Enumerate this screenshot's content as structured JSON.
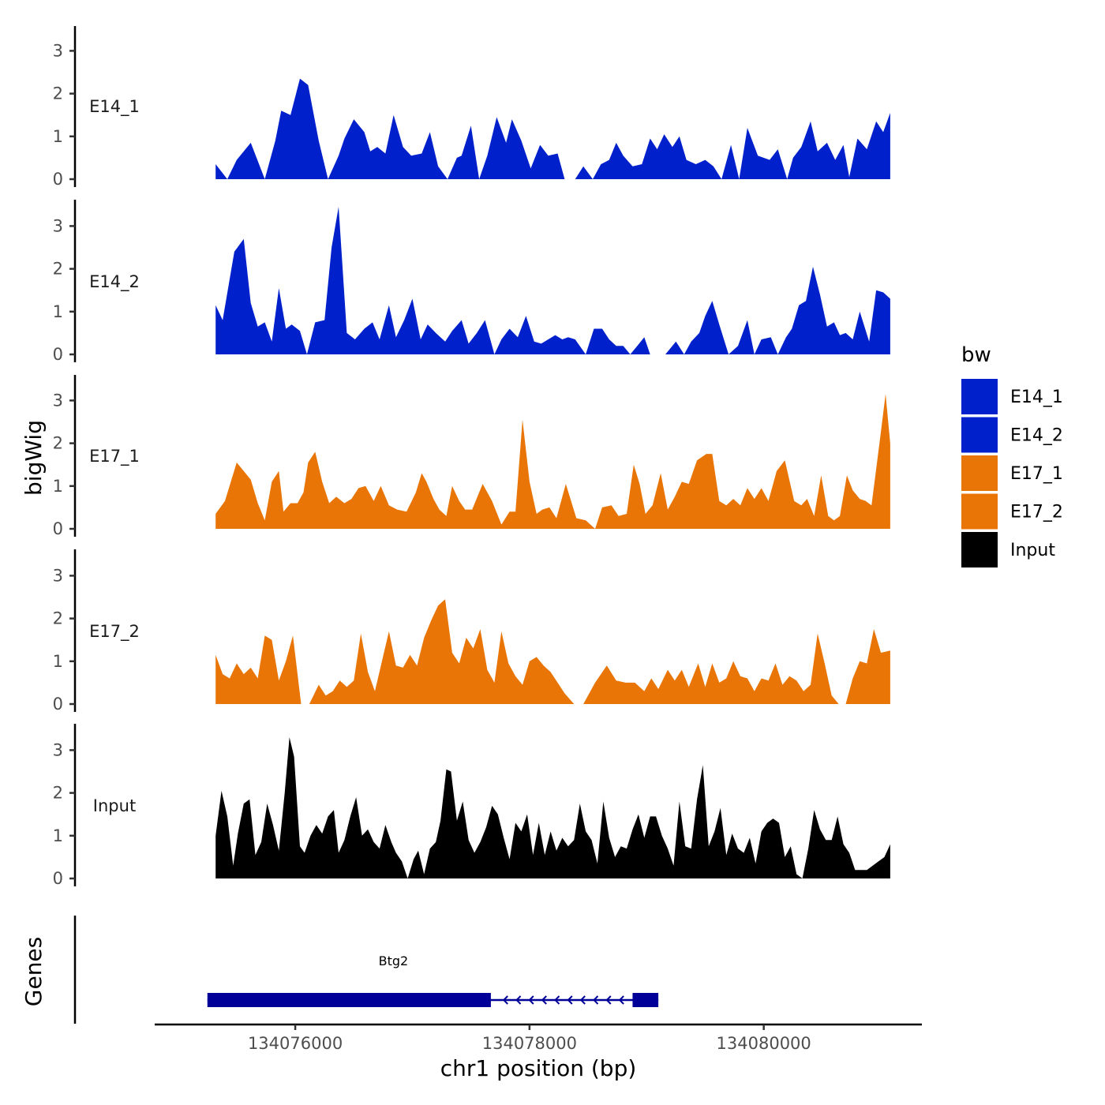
{
  "chart_data": {
    "type": "area",
    "title": "",
    "xlabel": "chr1 position (bp)",
    "ylabel": "bigWig",
    "genes_label": "Genes",
    "xlim": [
      134074800,
      134081350
    ],
    "ylim": [
      0,
      3.6
    ],
    "y_ticks": [
      0,
      1,
      2,
      3
    ],
    "x_ticks": [
      134076000,
      134078000,
      134080000
    ],
    "x_tick_labels": [
      "134076000",
      "134078000",
      "134080000"
    ],
    "legend": {
      "title": "bw",
      "position": "right",
      "entries": [
        {
          "label": "E14_1",
          "color": "#0020CC"
        },
        {
          "label": "E14_2",
          "color": "#0020CC"
        },
        {
          "label": "E17_1",
          "color": "#E87506"
        },
        {
          "label": "E17_2",
          "color": "#E87506"
        },
        {
          "label": "Input",
          "color": "#000000"
        }
      ]
    },
    "series": [
      {
        "name": "E14_1",
        "color": "#0020CC",
        "x": [
          134075320,
          134075420,
          134075500,
          134075620,
          134075740,
          134075830,
          134075880,
          134075960,
          134076040,
          134076110,
          134076200,
          134076280,
          134076370,
          134076420,
          134076500,
          134076590,
          134076640,
          134076700,
          134076770,
          134076840,
          134076920,
          134076990,
          134077080,
          134077150,
          134077220,
          134077300,
          134077380,
          134077420,
          134077500,
          134077570,
          134077640,
          134077720,
          134077800,
          134077850,
          134077930,
          134078010,
          134078090,
          134078160,
          134078240,
          134078300,
          134078390,
          134078460,
          134078540,
          134078610,
          134078680,
          134078740,
          134078800,
          134078880,
          134078960,
          134079030,
          134079090,
          134079150,
          134079220,
          134079280,
          134079340,
          134079420,
          134079500,
          134079570,
          134079640,
          134079720,
          134079790,
          134079860,
          134079950,
          134080050,
          134080120,
          134080200,
          134080250,
          134080320,
          134080400,
          134080460,
          134080540,
          134080610,
          134080680,
          134080730,
          134080800,
          134080880,
          134080960,
          134081020,
          134081080
        ],
        "y": [
          0.35,
          0,
          0.45,
          0.85,
          0,
          0.9,
          1.6,
          1.5,
          2.35,
          2.2,
          0.9,
          0,
          0.55,
          0.95,
          1.4,
          1.1,
          0.65,
          0.75,
          0.6,
          1.5,
          0.75,
          0.55,
          0.6,
          1.1,
          0.3,
          0,
          0.5,
          0.55,
          1.25,
          0,
          0.55,
          1.45,
          0.85,
          1.4,
          0.9,
          0.25,
          0.8,
          0.55,
          0.6,
          0,
          0,
          0.3,
          0,
          0.35,
          0.45,
          0.85,
          0.55,
          0.3,
          0.35,
          0.95,
          0.7,
          1.05,
          0.75,
          1.0,
          0.45,
          0.35,
          0.45,
          0.3,
          0,
          0.8,
          0,
          1.2,
          0.55,
          0.45,
          0.7,
          0,
          0.5,
          0.75,
          1.35,
          0.65,
          0.85,
          0.45,
          0.8,
          0.05,
          0.95,
          0.7,
          1.35,
          1.1,
          1.55
        ]
      },
      {
        "name": "E14_2",
        "color": "#0020CC",
        "x": [
          134075320,
          134075380,
          134075480,
          134075560,
          134075620,
          134075680,
          134075740,
          134075800,
          134075860,
          134075920,
          134075970,
          134076040,
          134076100,
          134076170,
          134076250,
          134076310,
          134076370,
          134076440,
          134076510,
          134076590,
          134076660,
          134076720,
          134076800,
          134076860,
          134076930,
          134077000,
          134077070,
          134077130,
          134077200,
          134077280,
          134077340,
          134077420,
          134077480,
          134077550,
          134077620,
          134077700,
          134077760,
          134077830,
          134077900,
          134077970,
          134078040,
          134078100,
          134078160,
          134078220,
          134078280,
          134078330,
          134078390,
          134078480,
          134078550,
          134078620,
          134078680,
          134078740,
          134078800,
          134078860,
          134078920,
          134078980,
          134079030,
          134079090,
          134079160,
          134079250,
          134079320,
          134079380,
          134079450,
          134079500,
          134079560,
          134079620,
          134079700,
          134079780,
          134079860,
          134079920,
          134079980,
          134080060,
          134080120,
          134080190,
          134080240,
          134080300,
          134080360,
          134080420,
          134080480,
          134080540,
          134080600,
          134080650,
          134080700,
          134080760,
          134080820,
          134080900,
          134080960,
          134081020,
          134081080
        ],
        "y": [
          1.15,
          0.8,
          2.4,
          2.7,
          1.2,
          0.65,
          0.75,
          0.3,
          1.55,
          0.6,
          0.7,
          0.55,
          0,
          0.75,
          0.8,
          2.5,
          3.45,
          0.5,
          0.35,
          0.6,
          0.75,
          0.35,
          1.15,
          0.4,
          0.8,
          1.3,
          0.35,
          0.7,
          0.5,
          0.3,
          0.55,
          0.8,
          0.25,
          0.5,
          0.8,
          0,
          0.35,
          0.6,
          0.4,
          0.9,
          0.3,
          0.25,
          0.35,
          0.45,
          0.35,
          0.4,
          0.35,
          0,
          0.6,
          0.6,
          0.35,
          0.2,
          0.2,
          0,
          0.2,
          0.4,
          0,
          0,
          0,
          0.3,
          0,
          0.3,
          0.5,
          0.9,
          1.25,
          0.7,
          0,
          0.2,
          0.8,
          0,
          0.35,
          0.4,
          0,
          0.4,
          0.6,
          1.15,
          1.25,
          2.05,
          1.4,
          0.65,
          0.75,
          0.45,
          0.5,
          0.35,
          1.0,
          0.3,
          1.5,
          1.45,
          1.3
        ]
      },
      {
        "name": "E17_1",
        "color": "#E87506",
        "x": [
          134075320,
          134075400,
          134075500,
          134075560,
          134075620,
          134075680,
          134075740,
          134075800,
          134075860,
          134075900,
          134075960,
          134076020,
          134076070,
          134076110,
          134076170,
          134076230,
          134076290,
          134076350,
          134076420,
          134076480,
          134076540,
          134076600,
          134076670,
          134076730,
          134076800,
          134076870,
          134076950,
          134077030,
          134077080,
          134077120,
          134077180,
          134077230,
          134077290,
          134077340,
          134077400,
          134077450,
          134077510,
          134077600,
          134077680,
          134077760,
          134077830,
          134077880,
          134077940,
          134078000,
          134078060,
          134078110,
          134078170,
          134078230,
          134078310,
          134078400,
          134078480,
          134078560,
          134078620,
          134078700,
          134078760,
          134078830,
          134078890,
          134078940,
          134078990,
          134079050,
          134079120,
          134079180,
          134079240,
          134079300,
          134079360,
          134079430,
          134079510,
          134079560,
          134079620,
          134079680,
          134079740,
          134079800,
          134079860,
          134079920,
          134079980,
          134080040,
          134080110,
          134080180,
          134080260,
          134080320,
          134080370,
          134080430,
          134080490,
          134080550,
          134080600,
          134080650,
          134080710,
          134080760,
          134080820,
          134080870,
          134080920,
          134080990,
          134081040,
          134081080
        ],
        "y": [
          0.35,
          0.65,
          1.55,
          1.35,
          1.15,
          0.6,
          0.2,
          1.1,
          1.35,
          0.4,
          0.6,
          0.6,
          0.85,
          1.55,
          1.8,
          1.1,
          0.6,
          0.75,
          0.6,
          0.7,
          0.95,
          1.0,
          0.65,
          1.0,
          0.55,
          0.45,
          0.4,
          0.85,
          1.3,
          1.1,
          0.7,
          0.45,
          0.3,
          1.0,
          0.65,
          0.45,
          0.45,
          1.05,
          0.65,
          0.1,
          0.4,
          0.4,
          2.55,
          1.1,
          0.35,
          0.45,
          0.5,
          0.25,
          1.05,
          0.25,
          0.2,
          0,
          0.5,
          0.55,
          0.3,
          0.35,
          1.5,
          1.05,
          0.35,
          0.55,
          1.3,
          0.45,
          0.75,
          1.1,
          1.05,
          1.6,
          1.75,
          1.75,
          0.65,
          0.55,
          0.7,
          0.55,
          0.95,
          0.7,
          0.95,
          0.65,
          1.35,
          1.6,
          0.65,
          0.55,
          0.7,
          0.3,
          1.25,
          0.3,
          0.2,
          0.3,
          1.25,
          0.9,
          0.7,
          0.65,
          0.55,
          2.05,
          3.15,
          2.0
        ]
      },
      {
        "name": "E17_2",
        "color": "#E87506",
        "x": [
          134075320,
          134075380,
          134075440,
          134075500,
          134075560,
          134075620,
          134075680,
          134075740,
          134075800,
          134075860,
          134075920,
          134075980,
          134076050,
          134076120,
          134076200,
          134076260,
          134076320,
          134076380,
          134076440,
          134076500,
          134076560,
          134076620,
          134076680,
          134076740,
          134076800,
          134076860,
          134076920,
          134076980,
          134077040,
          134077100,
          134077160,
          134077220,
          134077280,
          134077340,
          134077400,
          134077460,
          134077520,
          134077580,
          134077640,
          134077700,
          134077760,
          134077820,
          134077880,
          134077940,
          134078000,
          134078060,
          134078120,
          134078180,
          134078240,
          134078300,
          134078380,
          134078460,
          134078560,
          134078660,
          134078740,
          134078820,
          134078900,
          134078980,
          134079040,
          134079100,
          134079180,
          134079240,
          134079300,
          134079360,
          134079440,
          134079500,
          134079560,
          134079620,
          134079680,
          134079740,
          134079800,
          134079860,
          134079920,
          134079980,
          134080040,
          134080100,
          134080160,
          134080220,
          134080280,
          134080340,
          134080400,
          134080460,
          134080520,
          134080580,
          134080640,
          134080700,
          134080760,
          134080820,
          134080880,
          134080940,
          134081000,
          134081080
        ],
        "y": [
          1.15,
          0.7,
          0.6,
          0.95,
          0.7,
          0.85,
          0.6,
          1.6,
          1.5,
          0.55,
          1.0,
          1.6,
          0,
          0,
          0.45,
          0.2,
          0.3,
          0.55,
          0.4,
          0.55,
          1.65,
          0.75,
          0.3,
          1.0,
          1.7,
          0.9,
          0.85,
          1.15,
          0.9,
          1.55,
          1.95,
          2.3,
          2.45,
          1.2,
          0.95,
          1.55,
          1.3,
          1.75,
          0.8,
          0.5,
          1.7,
          0.95,
          0.65,
          0.45,
          1.0,
          1.1,
          0.9,
          0.75,
          0.5,
          0.25,
          0,
          0,
          0.5,
          0.9,
          0.55,
          0.5,
          0.5,
          0.3,
          0.6,
          0.35,
          0.8,
          0.55,
          0.8,
          0.4,
          0.95,
          0.4,
          0.95,
          0.5,
          0.6,
          1.0,
          0.65,
          0.6,
          0.3,
          0.6,
          0.55,
          0.95,
          0.45,
          0.65,
          0.55,
          0.3,
          0.45,
          1.65,
          0.95,
          0.2,
          0,
          0,
          0.6,
          1.0,
          0.95,
          1.75,
          1.2,
          1.25
        ]
      },
      {
        "name": "Input",
        "color": "#000000",
        "x": [
          134075320,
          134075370,
          134075420,
          134075470,
          134075510,
          134075560,
          134075610,
          134075660,
          134075710,
          134075760,
          134075810,
          134075860,
          134075910,
          134075950,
          134075990,
          134076040,
          134076080,
          134076130,
          134076180,
          134076230,
          134076280,
          134076330,
          134076370,
          134076420,
          134076470,
          134076520,
          134076570,
          134076620,
          134076670,
          134076720,
          134076770,
          134076820,
          134076860,
          134076910,
          134076960,
          134077010,
          134077050,
          134077100,
          134077150,
          134077200,
          134077240,
          134077290,
          134077330,
          134077380,
          134077430,
          134077480,
          134077530,
          134077580,
          134077630,
          134077680,
          134077730,
          134077780,
          134077830,
          134077880,
          134077930,
          134077980,
          134078030,
          134078080,
          134078130,
          134078180,
          134078230,
          134078280,
          134078330,
          134078380,
          134078430,
          134078480,
          134078530,
          134078580,
          134078630,
          134078680,
          134078730,
          134078780,
          134078830,
          134078880,
          134078930,
          134078980,
          134079030,
          134079080,
          134079130,
          134079180,
          134079230,
          134079280,
          134079330,
          134079380,
          134079430,
          134079480,
          134079530,
          134079580,
          134079630,
          134079680,
          134079730,
          134079780,
          134079830,
          134079880,
          134079930,
          134079980,
          134080030,
          134080080,
          134080130,
          134080180,
          134080230,
          134080280,
          134080330,
          134080380,
          134080430,
          134080480,
          134080530,
          134080580,
          134080630,
          134080680,
          134080730,
          134080780,
          134080830,
          134080880,
          134080930,
          134080980,
          134081030,
          134081080
        ],
        "y": [
          1.0,
          2.05,
          1.45,
          0.3,
          1.05,
          1.75,
          1.85,
          0.55,
          0.85,
          1.75,
          1.25,
          0.65,
          2.0,
          3.3,
          2.85,
          0.75,
          0.6,
          1.0,
          1.25,
          1.05,
          1.45,
          1.6,
          0.6,
          0.9,
          1.45,
          1.9,
          1.0,
          1.15,
          0.85,
          0.7,
          1.25,
          0.85,
          0.6,
          0.4,
          0.0,
          0.45,
          0.65,
          0.1,
          0.7,
          0.85,
          1.35,
          2.55,
          2.5,
          1.35,
          1.8,
          0.9,
          0.6,
          0.85,
          1.2,
          1.7,
          1.5,
          0.95,
          0.45,
          1.3,
          1.1,
          1.5,
          0.55,
          1.3,
          0.55,
          1.1,
          0.65,
          0.95,
          0.75,
          0.9,
          1.75,
          1.1,
          0.9,
          0.35,
          1.8,
          0.95,
          0.5,
          0.75,
          0.7,
          1.15,
          1.5,
          0.95,
          1.45,
          1.45,
          1.0,
          0.7,
          0.3,
          1.8,
          0.75,
          0.7,
          1.85,
          2.65,
          0.75,
          1.1,
          1.65,
          0.55,
          1.05,
          0.7,
          0.6,
          0.95,
          0.35,
          1.1,
          1.3,
          1.4,
          1.3,
          0.5,
          0.75,
          0.1,
          0.0,
          0.7,
          1.6,
          1.15,
          0.9,
          0.9,
          1.45,
          0.8,
          0.6,
          0.2,
          0.2,
          0.2,
          0.3,
          0.4,
          0.5,
          0.8
        ],
        "y_override": true
      }
    ],
    "genes": [
      {
        "name": "Btg2",
        "strand": "-",
        "start": 134075250,
        "end": 134079100,
        "exons": [
          [
            134075250,
            134077670
          ],
          [
            134078880,
            134079100
          ]
        ],
        "color": "#000099"
      }
    ]
  }
}
